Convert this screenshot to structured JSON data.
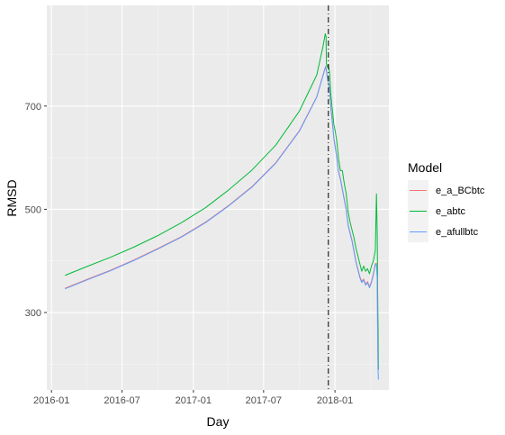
{
  "chart_data": {
    "type": "line",
    "xlabel": "Day",
    "ylabel": "RMSD",
    "x_ticks": [
      "2016-01",
      "2016-07",
      "2017-01",
      "2017-07",
      "2018-01"
    ],
    "y_ticks": [
      300,
      500,
      700
    ],
    "xlim": [
      "2015-12-20",
      "2018-05-20"
    ],
    "ylim": [
      150,
      895
    ],
    "grid": true,
    "background": "#ebebeb",
    "vline": {
      "x": "2017-12-15",
      "style": "dotdash",
      "color": "#000000"
    },
    "legend": {
      "title": "Model",
      "position": "right",
      "entries": [
        "e_a_BCbtc",
        "e_abtc",
        "e_afullbtc"
      ]
    },
    "series": [
      {
        "name": "e_a_BCbtc",
        "color": "#F8766D",
        "points": [
          [
            "2016-02-05",
            347
          ],
          [
            "2016-04-01",
            364
          ],
          [
            "2016-06-01",
            382
          ],
          [
            "2016-08-01",
            402
          ],
          [
            "2016-10-01",
            424
          ],
          [
            "2016-12-01",
            447
          ],
          [
            "2017-02-01",
            475
          ],
          [
            "2017-04-01",
            507
          ],
          [
            "2017-06-01",
            544
          ],
          [
            "2017-08-01",
            590
          ],
          [
            "2017-10-01",
            652
          ],
          [
            "2017-11-15",
            718
          ],
          [
            "2017-12-05",
            770
          ],
          [
            "2017-12-08",
            777
          ],
          [
            "2017-12-10",
            769
          ],
          [
            "2017-12-12",
            758
          ],
          [
            "2017-12-15",
            745
          ],
          [
            "2017-12-18",
            735
          ],
          [
            "2017-12-21",
            700
          ],
          [
            "2017-12-25",
            672
          ],
          [
            "2017-12-29",
            640
          ],
          [
            "2018-01-02",
            620
          ],
          [
            "2018-01-06",
            600
          ],
          [
            "2018-01-10",
            575
          ],
          [
            "2018-01-15",
            560
          ],
          [
            "2018-01-20",
            540
          ],
          [
            "2018-01-25",
            520
          ],
          [
            "2018-01-30",
            500
          ],
          [
            "2018-02-04",
            470
          ],
          [
            "2018-02-09",
            455
          ],
          [
            "2018-02-14",
            440
          ],
          [
            "2018-02-19",
            420
          ],
          [
            "2018-02-24",
            400
          ],
          [
            "2018-03-01",
            385
          ],
          [
            "2018-03-06",
            370
          ],
          [
            "2018-03-11",
            360
          ],
          [
            "2018-03-16",
            365
          ],
          [
            "2018-03-21",
            355
          ],
          [
            "2018-03-26",
            360
          ],
          [
            "2018-03-31",
            350
          ],
          [
            "2018-04-05",
            360
          ],
          [
            "2018-04-10",
            375
          ],
          [
            "2018-04-15",
            395
          ],
          [
            "2018-04-18",
            395
          ],
          [
            "2018-04-20",
            370
          ],
          [
            "2018-04-21",
            270
          ],
          [
            "2018-04-22",
            200
          ],
          [
            "2018-04-23",
            190
          ]
        ]
      },
      {
        "name": "e_abtc",
        "color": "#00BA38",
        "points": [
          [
            "2016-02-05",
            372
          ],
          [
            "2016-04-01",
            389
          ],
          [
            "2016-06-01",
            407
          ],
          [
            "2016-08-01",
            427
          ],
          [
            "2016-10-01",
            449
          ],
          [
            "2016-12-01",
            474
          ],
          [
            "2017-02-01",
            503
          ],
          [
            "2017-04-01",
            537
          ],
          [
            "2017-06-01",
            576
          ],
          [
            "2017-08-01",
            624
          ],
          [
            "2017-10-01",
            690
          ],
          [
            "2017-11-15",
            760
          ],
          [
            "2017-12-01",
            815
          ],
          [
            "2017-12-07",
            840
          ],
          [
            "2017-12-09",
            835
          ],
          [
            "2017-12-10",
            782
          ],
          [
            "2017-12-12",
            776
          ],
          [
            "2017-12-15",
            780
          ],
          [
            "2017-12-18",
            765
          ],
          [
            "2017-12-21",
            725
          ],
          [
            "2017-12-25",
            695
          ],
          [
            "2017-12-29",
            665
          ],
          [
            "2018-01-02",
            650
          ],
          [
            "2018-01-06",
            630
          ],
          [
            "2018-01-10",
            600
          ],
          [
            "2018-01-15",
            575
          ],
          [
            "2018-01-20",
            575
          ],
          [
            "2018-01-25",
            550
          ],
          [
            "2018-01-30",
            530
          ],
          [
            "2018-02-04",
            495
          ],
          [
            "2018-02-09",
            475
          ],
          [
            "2018-02-14",
            460
          ],
          [
            "2018-02-19",
            445
          ],
          [
            "2018-02-24",
            425
          ],
          [
            "2018-03-01",
            410
          ],
          [
            "2018-03-06",
            395
          ],
          [
            "2018-03-11",
            380
          ],
          [
            "2018-03-16",
            390
          ],
          [
            "2018-03-21",
            380
          ],
          [
            "2018-03-26",
            385
          ],
          [
            "2018-03-31",
            375
          ],
          [
            "2018-04-05",
            390
          ],
          [
            "2018-04-10",
            400
          ],
          [
            "2018-04-15",
            420
          ],
          [
            "2018-04-18",
            530
          ],
          [
            "2018-04-20",
            450
          ],
          [
            "2018-04-21",
            340
          ],
          [
            "2018-04-22",
            280
          ],
          [
            "2018-04-23",
            190
          ]
        ]
      },
      {
        "name": "e_afullbtc",
        "color": "#619CFF",
        "points": [
          [
            "2016-02-05",
            346
          ],
          [
            "2016-04-01",
            363
          ],
          [
            "2016-06-01",
            381
          ],
          [
            "2016-08-01",
            401
          ],
          [
            "2016-10-01",
            423
          ],
          [
            "2016-12-01",
            446
          ],
          [
            "2017-02-01",
            474
          ],
          [
            "2017-04-01",
            506
          ],
          [
            "2017-06-01",
            543
          ],
          [
            "2017-08-01",
            589
          ],
          [
            "2017-10-01",
            651
          ],
          [
            "2017-11-15",
            717
          ],
          [
            "2017-12-05",
            769
          ],
          [
            "2017-12-08",
            776
          ],
          [
            "2017-12-10",
            768
          ],
          [
            "2017-12-12",
            757
          ],
          [
            "2017-12-15",
            744
          ],
          [
            "2017-12-18",
            733
          ],
          [
            "2017-12-21",
            698
          ],
          [
            "2017-12-25",
            670
          ],
          [
            "2017-12-29",
            638
          ],
          [
            "2018-01-02",
            618
          ],
          [
            "2018-01-06",
            598
          ],
          [
            "2018-01-10",
            573
          ],
          [
            "2018-01-15",
            558
          ],
          [
            "2018-01-20",
            538
          ],
          [
            "2018-01-25",
            518
          ],
          [
            "2018-01-30",
            498
          ],
          [
            "2018-02-04",
            468
          ],
          [
            "2018-02-09",
            453
          ],
          [
            "2018-02-14",
            438
          ],
          [
            "2018-02-19",
            418
          ],
          [
            "2018-02-24",
            398
          ],
          [
            "2018-03-01",
            383
          ],
          [
            "2018-03-06",
            368
          ],
          [
            "2018-03-11",
            358
          ],
          [
            "2018-03-16",
            363
          ],
          [
            "2018-03-21",
            353
          ],
          [
            "2018-03-26",
            358
          ],
          [
            "2018-03-31",
            348
          ],
          [
            "2018-04-05",
            358
          ],
          [
            "2018-04-10",
            373
          ],
          [
            "2018-04-15",
            393
          ],
          [
            "2018-04-18",
            393
          ],
          [
            "2018-04-20",
            365
          ],
          [
            "2018-04-21",
            260
          ],
          [
            "2018-04-22",
            190
          ],
          [
            "2018-04-23",
            170
          ]
        ]
      }
    ]
  }
}
